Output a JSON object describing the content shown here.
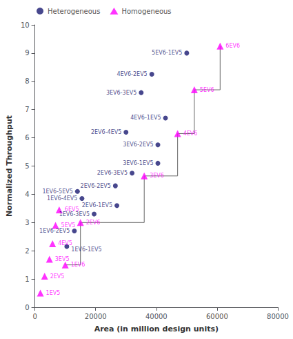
{
  "chart_data": {
    "type": "scatter",
    "xlabel": "Area (in million design units)",
    "ylabel": "Normalized Throughput",
    "xlim": [
      0,
      80000
    ],
    "ylim": [
      0,
      10
    ],
    "xticks": [
      0,
      20000,
      40000,
      60000,
      80000
    ],
    "yticks": [
      0,
      1,
      2,
      3,
      4,
      5,
      6,
      7,
      8,
      9,
      10
    ],
    "grid": false,
    "legend": "upper left",
    "series": [
      {
        "name": "Heterogeneous",
        "type": "scatter",
        "marker": "circle",
        "color": "#191970",
        "x": [
          35000,
          43000,
          38500,
          50000,
          30000,
          40500,
          40500,
          32000,
          26500,
          14000,
          15500,
          27000,
          19500,
          13000,
          10500
        ],
        "values": [
          7.6,
          6.7,
          8.25,
          9.0,
          6.2,
          5.75,
          5.1,
          4.75,
          4.3,
          4.1,
          3.85,
          3.6,
          3.3,
          2.7,
          2.15
        ],
        "labels": [
          "3EV6-3EV5",
          "4EV6-1EV5",
          "4EV6-2EV5",
          "5EV6-1EV5",
          "2EV6-4EV5",
          "3EV6-2EV5",
          "3EV6-1EV5",
          "2EV6-3EV5",
          "2EV6-2EV5",
          "1EV6-5EV5",
          "1EV6-4EV5",
          "2EV6-1EV5",
          "1EV6-3EV5",
          "1EV6-2EV5",
          "1EV6-1EV5"
        ]
      },
      {
        "name": "Homogeneous",
        "type": "scatter",
        "marker": "triangle",
        "color": "#FF00FF",
        "x": [
          1800,
          3200,
          4800,
          5800,
          6800,
          8000,
          10000,
          15000,
          36000,
          47000,
          52500,
          61000
        ],
        "values": [
          0.5,
          1.1,
          1.7,
          2.25,
          2.9,
          3.45,
          1.5,
          3.0,
          4.65,
          6.15,
          7.7,
          9.25
        ],
        "labels": [
          "1EV5",
          "2EV5",
          "3EV5",
          "4EV5",
          "5EV5",
          "6EV5",
          "1EV6",
          "2EV6",
          "3EV6",
          "4EV6",
          "5EV6",
          "6EV6"
        ]
      },
      {
        "type": "line",
        "color": "#666666",
        "x": [
          10000,
          15000,
          15000,
          36000,
          36000,
          47000,
          47000,
          52500,
          52500,
          61000,
          61000
        ],
        "values": [
          1.5,
          1.5,
          3.0,
          3.0,
          4.65,
          4.65,
          6.15,
          6.15,
          7.7,
          7.7,
          9.25
        ]
      }
    ]
  }
}
